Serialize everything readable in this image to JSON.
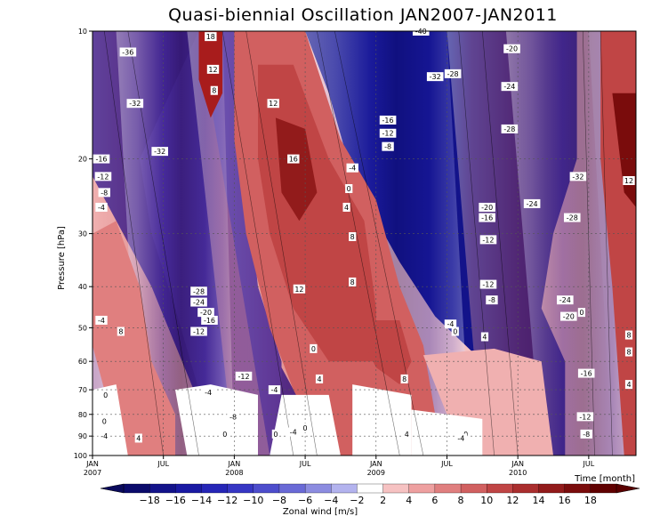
{
  "chart_data": {
    "type": "heatmap",
    "title": "Quasi-biennial Oscillation JAN2007-JAN2011",
    "ylabel": "Pressure [hPa]",
    "xlabel": "Time [month]",
    "colorbar_label": "Zonal wind [m/s]",
    "y_scale": "log",
    "y_reversed": true,
    "ylim": [
      100,
      10
    ],
    "y_ticks": [
      10,
      20,
      30,
      40,
      50,
      60,
      70,
      80,
      90,
      100
    ],
    "x_ticks": [
      {
        "month": 0,
        "label": "JAN",
        "year": "2007"
      },
      {
        "month": 6,
        "label": "JUL",
        "year": ""
      },
      {
        "month": 12,
        "label": "JAN",
        "year": "2008"
      },
      {
        "month": 18,
        "label": "JUL",
        "year": ""
      },
      {
        "month": 24,
        "label": "JAN",
        "year": "2009"
      },
      {
        "month": 30,
        "label": "JUL",
        "year": ""
      },
      {
        "month": 36,
        "label": "JAN",
        "year": "2010"
      },
      {
        "month": 42,
        "label": "JUL",
        "year": ""
      }
    ],
    "xlim": [
      0,
      46
    ],
    "grid": true,
    "colorbar": {
      "levels": [
        -18,
        -16,
        -14,
        -12,
        -10,
        -8,
        -6,
        -4,
        -2,
        2,
        4,
        6,
        8,
        10,
        12,
        14,
        16,
        18
      ],
      "colors": [
        "#0b0b6b",
        "#13138a",
        "#1a1aa3",
        "#2626b7",
        "#3636c4",
        "#4d4dcc",
        "#6a6ad6",
        "#8c8ce0",
        "#b3b3ee",
        "#ffffff",
        "#f6c2c2",
        "#eea0a0",
        "#e07f7f",
        "#d16060",
        "#c04545",
        "#aa2e2e",
        "#921b1b",
        "#7a0c0c",
        "#600000"
      ]
    },
    "contour_labels": [
      {
        "t": 0.6,
        "p": 20,
        "v": -16
      },
      {
        "t": 0.9,
        "p": 22,
        "v": -12
      },
      {
        "t": 1.0,
        "p": 24,
        "v": -8
      },
      {
        "t": 0.5,
        "p": 26,
        "v": -4
      },
      {
        "t": 3.0,
        "p": 11.2,
        "v": -36
      },
      {
        "t": 3.6,
        "p": 14.8,
        "v": -32
      },
      {
        "t": 5.7,
        "p": 19.2,
        "v": -32
      },
      {
        "t": 0.7,
        "p": 48,
        "v": -4
      },
      {
        "t": 2.4,
        "p": 51,
        "v": 8
      },
      {
        "t": 3.9,
        "p": 91,
        "v": 4
      },
      {
        "t": 1.1,
        "p": 72,
        "v": 0
      },
      {
        "t": 1.0,
        "p": 83,
        "v": 0
      },
      {
        "t": 1.0,
        "p": 90,
        "v": -4
      },
      {
        "t": 9.0,
        "p": 41,
        "v": -28
      },
      {
        "t": 9.0,
        "p": 43.5,
        "v": -24
      },
      {
        "t": 9.6,
        "p": 46,
        "v": -20
      },
      {
        "t": 9.9,
        "p": 48,
        "v": -16
      },
      {
        "t": 9.0,
        "p": 51,
        "v": -12
      },
      {
        "t": 10.0,
        "p": 10.3,
        "v": 18
      },
      {
        "t": 10.2,
        "p": 12.3,
        "v": 12
      },
      {
        "t": 10.3,
        "p": 13.8,
        "v": 8
      },
      {
        "t": 12.8,
        "p": 65,
        "v": -12
      },
      {
        "t": 9.8,
        "p": 71,
        "v": -4
      },
      {
        "t": 11.2,
        "p": 89,
        "v": 0
      },
      {
        "t": 11.9,
        "p": 81,
        "v": -8
      },
      {
        "t": 15.4,
        "p": 70,
        "v": -4
      },
      {
        "t": 15.5,
        "p": 89,
        "v": 0
      },
      {
        "t": 18.0,
        "p": 86,
        "v": 0
      },
      {
        "t": 17.0,
        "p": 88,
        "v": -4
      },
      {
        "t": 15.3,
        "p": 14.8,
        "v": 12
      },
      {
        "t": 17.0,
        "p": 20,
        "v": 16
      },
      {
        "t": 17.5,
        "p": 40.5,
        "v": 12
      },
      {
        "t": 19.2,
        "p": 66,
        "v": 4
      },
      {
        "t": 18.7,
        "p": 56,
        "v": 0
      },
      {
        "t": 22.0,
        "p": 21,
        "v": -4
      },
      {
        "t": 21.7,
        "p": 23.5,
        "v": 0
      },
      {
        "t": 21.5,
        "p": 26,
        "v": 4
      },
      {
        "t": 22.0,
        "p": 30.5,
        "v": 8
      },
      {
        "t": 22.0,
        "p": 39,
        "v": 8
      },
      {
        "t": 25.0,
        "p": 16.2,
        "v": -16
      },
      {
        "t": 25.0,
        "p": 17.4,
        "v": -12
      },
      {
        "t": 25.0,
        "p": 18.7,
        "v": -8
      },
      {
        "t": 27.8,
        "p": 10,
        "v": -40
      },
      {
        "t": 29.0,
        "p": 12.8,
        "v": -32
      },
      {
        "t": 30.5,
        "p": 12.6,
        "v": -28
      },
      {
        "t": 26.4,
        "p": 66,
        "v": 8
      },
      {
        "t": 26.6,
        "p": 89,
        "v": 4
      },
      {
        "t": 30.3,
        "p": 49,
        "v": -4
      },
      {
        "t": 30.7,
        "p": 51,
        "v": 0
      },
      {
        "t": 31.6,
        "p": 89,
        "v": 0
      },
      {
        "t": 31.2,
        "p": 91,
        "v": -4
      },
      {
        "t": 33.2,
        "p": 52.5,
        "v": 4
      },
      {
        "t": 33.4,
        "p": 26,
        "v": -20
      },
      {
        "t": 33.4,
        "p": 27.5,
        "v": -16
      },
      {
        "t": 33.5,
        "p": 31,
        "v": -12
      },
      {
        "t": 33.5,
        "p": 39.5,
        "v": -12
      },
      {
        "t": 33.8,
        "p": 43,
        "v": -8
      },
      {
        "t": 35.5,
        "p": 11,
        "v": -20
      },
      {
        "t": 35.3,
        "p": 13.5,
        "v": -24
      },
      {
        "t": 35.3,
        "p": 17,
        "v": -28
      },
      {
        "t": 37.2,
        "p": 25.5,
        "v": -24
      },
      {
        "t": 41.1,
        "p": 22,
        "v": -32
      },
      {
        "t": 40.6,
        "p": 27.5,
        "v": -28
      },
      {
        "t": 40.0,
        "p": 43,
        "v": -24
      },
      {
        "t": 40.3,
        "p": 47,
        "v": -20
      },
      {
        "t": 41.4,
        "p": 46,
        "v": 0
      },
      {
        "t": 41.8,
        "p": 64,
        "v": -16
      },
      {
        "t": 41.7,
        "p": 81,
        "v": -12
      },
      {
        "t": 41.8,
        "p": 89,
        "v": -8
      },
      {
        "t": 46.0,
        "p": 22.5,
        "v": 12
      },
      {
        "t": 46.5,
        "p": 52,
        "v": 8
      },
      {
        "t": 46.5,
        "p": 57,
        "v": 8
      },
      {
        "t": 46.5,
        "p": 68,
        "v": 4
      }
    ]
  }
}
